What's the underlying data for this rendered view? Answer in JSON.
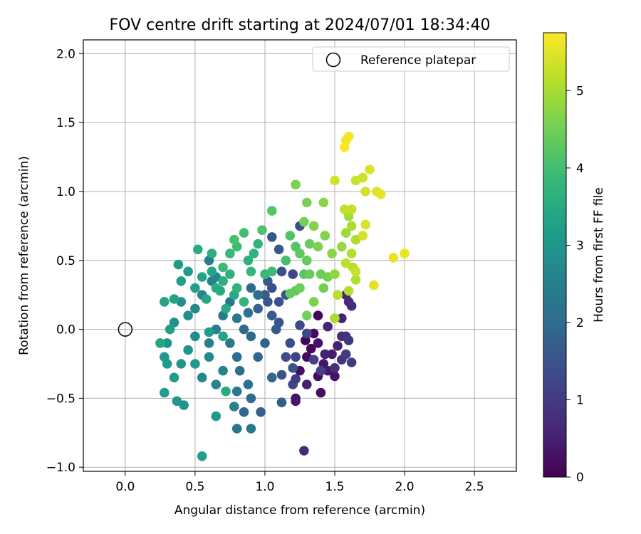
{
  "chart_data": {
    "type": "scatter",
    "title": "FOV centre drift starting at 2024/07/01 18:34:40",
    "xlabel": "Angular distance from reference (arcmin)",
    "ylabel": "Rotation from reference (arcmin)",
    "xlim": [
      -0.3,
      2.8
    ],
    "ylim": [
      -1.03,
      2.1
    ],
    "xticks": [
      0.0,
      0.5,
      1.0,
      1.5,
      2.0,
      2.5
    ],
    "xtick_labels": [
      "0.0",
      "0.5",
      "1.0",
      "1.5",
      "2.0",
      "2.5"
    ],
    "yticks": [
      -1.0,
      -0.5,
      0.0,
      0.5,
      1.0,
      1.5,
      2.0
    ],
    "ytick_labels": [
      "−1.0",
      "−0.5",
      "0.0",
      "0.5",
      "1.0",
      "1.5",
      "2.0"
    ],
    "grid": true,
    "legend": {
      "placement": "top-right",
      "entries": [
        "Reference platepar"
      ]
    },
    "reference_point": {
      "x": 0.0,
      "y": 0.0,
      "label": "Reference platepar"
    },
    "colorbar": {
      "label": "Hours from first FF file",
      "range": [
        0,
        5.75
      ],
      "ticks": [
        0,
        1,
        2,
        3,
        4,
        5
      ],
      "tick_labels": [
        "0",
        "1",
        "2",
        "3",
        "4",
        "5"
      ],
      "colormap": "viridis",
      "colormap_stops": [
        "#440154",
        "#482878",
        "#3e4989",
        "#31688e",
        "#26828e",
        "#1f9e89",
        "#35b779",
        "#6ece58",
        "#b5de2b",
        "#fde725"
      ]
    },
    "points": [
      [
        1.29,
        -0.08,
        0.05
      ],
      [
        1.33,
        -0.14,
        0.1
      ],
      [
        1.35,
        -0.03,
        0.15
      ],
      [
        1.3,
        -0.2,
        0.2
      ],
      [
        1.25,
        -0.3,
        0.25
      ],
      [
        1.38,
        -0.1,
        0.3
      ],
      [
        1.42,
        -0.25,
        0.35
      ],
      [
        1.45,
        -0.3,
        0.4
      ],
      [
        1.22,
        -0.5,
        0.35
      ],
      [
        1.22,
        -0.52,
        0.3
      ],
      [
        1.38,
        -0.34,
        0.2
      ],
      [
        1.4,
        -0.46,
        0.25
      ],
      [
        1.38,
        0.1,
        0.1
      ],
      [
        1.48,
        -0.18,
        0.45
      ],
      [
        1.52,
        -0.12,
        0.5
      ],
      [
        1.55,
        0.08,
        0.55
      ],
      [
        1.45,
        0.02,
        0.6
      ],
      [
        1.58,
        0.25,
        0.6
      ],
      [
        1.6,
        0.2,
        0.65
      ],
      [
        1.62,
        0.17,
        0.7
      ],
      [
        1.55,
        -0.05,
        0.75
      ],
      [
        1.5,
        -0.34,
        0.3
      ],
      [
        1.28,
        -0.88,
        0.7
      ],
      [
        1.58,
        -0.05,
        0.8
      ],
      [
        1.3,
        -0.4,
        0.5
      ],
      [
        1.43,
        -0.18,
        0.55
      ],
      [
        1.5,
        -0.28,
        0.8
      ],
      [
        1.55,
        -0.22,
        0.9
      ],
      [
        1.6,
        -0.08,
        0.95
      ],
      [
        1.62,
        -0.24,
        1.0
      ],
      [
        1.58,
        -0.18,
        1.05
      ],
      [
        1.4,
        -0.3,
        1.1
      ],
      [
        1.35,
        -0.22,
        1.15
      ],
      [
        1.2,
        -0.4,
        1.2
      ],
      [
        1.22,
        -0.36,
        1.0
      ],
      [
        1.3,
        -0.03,
        1.25
      ],
      [
        1.25,
        0.03,
        1.3
      ],
      [
        1.18,
        -0.1,
        1.35
      ],
      [
        1.15,
        -0.2,
        1.4
      ],
      [
        1.12,
        -0.33,
        1.45
      ],
      [
        1.2,
        -0.28,
        1.5
      ],
      [
        1.22,
        -0.2,
        1.15
      ],
      [
        1.08,
        0.0,
        1.6
      ],
      [
        1.1,
        0.05,
        1.55
      ],
      [
        1.05,
        0.1,
        1.65
      ],
      [
        1.1,
        0.2,
        1.5
      ],
      [
        1.15,
        0.25,
        1.45
      ],
      [
        1.12,
        0.42,
        1.35
      ],
      [
        1.05,
        0.3,
        1.4
      ],
      [
        1.0,
        0.25,
        1.7
      ],
      [
        0.95,
        0.15,
        1.75
      ],
      [
        1.2,
        0.4,
        1.2
      ],
      [
        1.25,
        0.75,
        1.4
      ],
      [
        1.05,
        0.67,
        1.5
      ],
      [
        1.1,
        0.58,
        1.6
      ],
      [
        1.02,
        0.35,
        1.6
      ],
      [
        1.02,
        0.2,
        1.55
      ],
      [
        1.0,
        -0.1,
        1.8
      ],
      [
        0.95,
        -0.2,
        1.85
      ],
      [
        1.12,
        -0.53,
        1.7
      ],
      [
        0.97,
        -0.6,
        1.75
      ],
      [
        1.05,
        -0.35,
        1.9
      ],
      [
        0.9,
        -0.05,
        1.95
      ],
      [
        0.85,
        0.0,
        2.0
      ],
      [
        0.8,
        -0.2,
        2.05
      ],
      [
        0.82,
        -0.3,
        2.1
      ],
      [
        0.88,
        -0.4,
        2.15
      ],
      [
        0.9,
        -0.5,
        2.0
      ],
      [
        0.85,
        -0.6,
        1.95
      ],
      [
        0.8,
        -0.72,
        2.2
      ],
      [
        0.9,
        0.3,
        2.05
      ],
      [
        0.95,
        0.25,
        2.1
      ],
      [
        0.88,
        0.12,
        2.15
      ],
      [
        0.8,
        0.08,
        2.25
      ],
      [
        0.75,
        0.2,
        2.3
      ],
      [
        0.7,
        0.1,
        2.4
      ],
      [
        0.65,
        0.0,
        2.45
      ],
      [
        0.6,
        -0.1,
        2.5
      ],
      [
        0.75,
        -0.1,
        2.35
      ],
      [
        0.8,
        -0.45,
        2.3
      ],
      [
        0.9,
        -0.72,
        2.25
      ],
      [
        0.78,
        -0.56,
        2.5
      ],
      [
        0.65,
        -0.4,
        2.6
      ],
      [
        0.55,
        -0.35,
        2.65
      ],
      [
        0.6,
        -0.2,
        2.7
      ],
      [
        0.7,
        -0.3,
        2.55
      ],
      [
        0.5,
        -0.05,
        2.75
      ],
      [
        0.45,
        0.1,
        2.8
      ],
      [
        0.4,
        0.2,
        2.85
      ],
      [
        0.5,
        0.15,
        2.7
      ],
      [
        0.55,
        0.25,
        2.6
      ],
      [
        0.62,
        0.35,
        2.5
      ],
      [
        0.6,
        0.5,
        2.45
      ],
      [
        0.65,
        0.38,
        2.65
      ],
      [
        0.35,
        0.05,
        2.9
      ],
      [
        0.3,
        -0.1,
        3.0
      ],
      [
        0.28,
        -0.2,
        3.05
      ],
      [
        0.3,
        -0.25,
        3.1
      ],
      [
        0.35,
        -0.35,
        3.15
      ],
      [
        0.4,
        -0.25,
        2.95
      ],
      [
        0.45,
        -0.15,
        3.0
      ],
      [
        0.5,
        -0.25,
        3.1
      ],
      [
        0.42,
        -0.55,
        3.0
      ],
      [
        0.37,
        -0.52,
        3.05
      ],
      [
        0.28,
        -0.46,
        3.2
      ],
      [
        0.55,
        -0.92,
        3.25
      ],
      [
        0.65,
        -0.63,
        3.15
      ],
      [
        0.4,
        0.35,
        3.2
      ],
      [
        0.45,
        0.42,
        3.1
      ],
      [
        0.38,
        0.47,
        3.15
      ],
      [
        0.35,
        0.22,
        3.3
      ],
      [
        0.28,
        0.2,
        3.35
      ],
      [
        0.32,
        0.0,
        3.25
      ],
      [
        0.25,
        -0.1,
        3.4
      ],
      [
        0.62,
        0.42,
        3.3
      ],
      [
        0.55,
        0.38,
        3.35
      ],
      [
        0.5,
        0.3,
        3.25
      ],
      [
        0.58,
        0.22,
        3.4
      ],
      [
        0.68,
        0.28,
        3.45
      ],
      [
        0.72,
        0.15,
        3.5
      ],
      [
        0.78,
        0.25,
        3.45
      ],
      [
        0.7,
        -0.05,
        3.35
      ],
      [
        0.6,
        -0.02,
        3.2
      ],
      [
        0.65,
        0.3,
        3.55
      ],
      [
        0.7,
        0.35,
        3.6
      ],
      [
        0.75,
        0.4,
        3.65
      ],
      [
        0.8,
        0.3,
        3.7
      ],
      [
        0.85,
        0.2,
        3.75
      ],
      [
        0.9,
        0.42,
        3.8
      ],
      [
        0.75,
        0.55,
        3.85
      ],
      [
        0.7,
        0.45,
        3.9
      ],
      [
        0.8,
        0.6,
        3.95
      ],
      [
        0.85,
        0.7,
        4.0
      ],
      [
        0.78,
        0.65,
        4.05
      ],
      [
        0.72,
        -0.45,
        3.5
      ],
      [
        0.52,
        0.58,
        3.55
      ],
      [
        0.62,
        0.55,
        3.6
      ],
      [
        0.88,
        0.5,
        3.65
      ],
      [
        0.92,
        0.55,
        3.7
      ],
      [
        0.95,
        0.62,
        3.75
      ],
      [
        1.0,
        0.4,
        3.85
      ],
      [
        1.05,
        0.42,
        3.9
      ],
      [
        0.98,
        0.72,
        4.1
      ],
      [
        1.05,
        0.86,
        4.2
      ],
      [
        1.15,
        0.5,
        4.0
      ],
      [
        1.18,
        0.68,
        4.15
      ],
      [
        1.22,
        0.6,
        4.2
      ],
      [
        1.25,
        0.55,
        4.3
      ],
      [
        1.28,
        0.4,
        4.25
      ],
      [
        1.3,
        0.5,
        4.35
      ],
      [
        1.32,
        0.62,
        4.4
      ],
      [
        1.22,
        0.28,
        4.3
      ],
      [
        1.18,
        0.26,
        4.35
      ],
      [
        1.25,
        0.3,
        4.45
      ],
      [
        1.28,
        0.78,
        4.5
      ],
      [
        1.3,
        0.92,
        4.55
      ],
      [
        1.22,
        1.05,
        4.6
      ],
      [
        1.35,
        0.75,
        4.65
      ],
      [
        1.4,
        0.4,
        4.45
      ],
      [
        1.42,
        0.3,
        4.5
      ],
      [
        1.45,
        0.38,
        4.55
      ],
      [
        1.38,
        0.6,
        4.6
      ],
      [
        1.43,
        0.68,
        4.65
      ],
      [
        1.42,
        0.92,
        4.7
      ],
      [
        1.48,
        0.55,
        4.75
      ],
      [
        1.5,
        0.4,
        4.8
      ],
      [
        1.3,
        0.1,
        4.5
      ],
      [
        1.32,
        0.4,
        4.4
      ],
      [
        1.35,
        0.2,
        4.6
      ],
      [
        1.55,
        0.6,
        4.85
      ],
      [
        1.58,
        0.7,
        4.9
      ],
      [
        1.6,
        0.82,
        4.95
      ],
      [
        1.62,
        0.75,
        5.0
      ],
      [
        1.65,
        0.65,
        5.05
      ],
      [
        1.62,
        0.55,
        5.1
      ],
      [
        1.63,
        0.45,
        5.15
      ],
      [
        1.65,
        0.36,
        5.05
      ],
      [
        1.6,
        0.28,
        5.1
      ],
      [
        1.52,
        0.25,
        5.15
      ],
      [
        1.58,
        0.48,
        5.2
      ],
      [
        1.57,
        0.87,
        5.2
      ],
      [
        1.62,
        0.87,
        5.25
      ],
      [
        1.65,
        1.08,
        5.3
      ],
      [
        1.7,
        1.1,
        5.35
      ],
      [
        1.72,
        1.0,
        5.4
      ],
      [
        1.75,
        1.16,
        5.45
      ],
      [
        1.8,
        1.0,
        5.5
      ],
      [
        1.83,
        0.98,
        5.55
      ],
      [
        1.78,
        0.32,
        5.5
      ],
      [
        1.92,
        0.52,
        5.55
      ],
      [
        2.0,
        0.55,
        5.6
      ],
      [
        1.7,
        0.68,
        5.4
      ],
      [
        1.72,
        0.76,
        5.45
      ],
      [
        1.6,
        1.4,
        5.7
      ],
      [
        1.58,
        1.37,
        5.65
      ],
      [
        1.57,
        1.32,
        5.75
      ],
      [
        1.5,
        1.08,
        5.35
      ],
      [
        1.65,
        0.42,
        5.3
      ],
      [
        1.5,
        0.08,
        5.0
      ]
    ]
  }
}
